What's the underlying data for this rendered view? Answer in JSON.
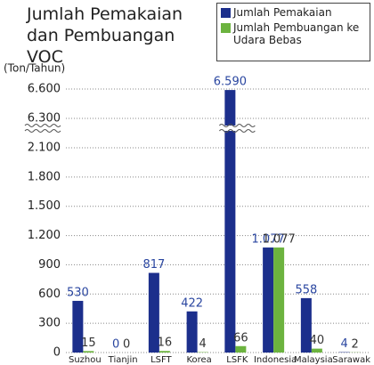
{
  "chart_data": {
    "type": "bar",
    "title": "Jumlah Pemakaian dan Pembuangan VOC",
    "y_label": "(Ton/Tahun)",
    "categories": [
      "Suzhou",
      "Tianjin",
      "LSFT",
      "Korea",
      "LSFK",
      "Indonesia",
      "Malaysia",
      "Sarawak"
    ],
    "series": [
      {
        "name": "Jumlah Pemakaian",
        "color": "#1c2f8c",
        "label_color": "#2a46a0",
        "values": [
          530,
          0,
          817,
          422,
          6590,
          1077,
          558,
          4
        ],
        "value_labels": [
          "530",
          "0",
          "817",
          "422",
          "6.590",
          "1.077",
          "558",
          "4"
        ]
      },
      {
        "name": "Jumlah Pembuangan ke Udara Bebas",
        "color": "#6cb33f",
        "label_color": "#333333",
        "values": [
          15,
          0,
          16,
          4,
          66,
          1077,
          40,
          2
        ],
        "value_labels": [
          "15",
          "0",
          "16",
          "4",
          "66",
          "1.077",
          "40",
          "2"
        ]
      }
    ],
    "ylim": [
      0,
      6600
    ],
    "axis_break": [
      2100,
      6300
    ],
    "yticks": [
      0,
      300,
      600,
      900,
      {
        "value": 1200,
        "label": "1.200"
      },
      {
        "value": 1500,
        "label": "1.500"
      },
      {
        "value": 1800,
        "label": "1.800"
      },
      {
        "value": 2100,
        "label": "2.100"
      },
      {
        "value": 6300,
        "label": "6.300"
      },
      {
        "value": 6600,
        "label": "6.600"
      }
    ],
    "grid": true
  }
}
